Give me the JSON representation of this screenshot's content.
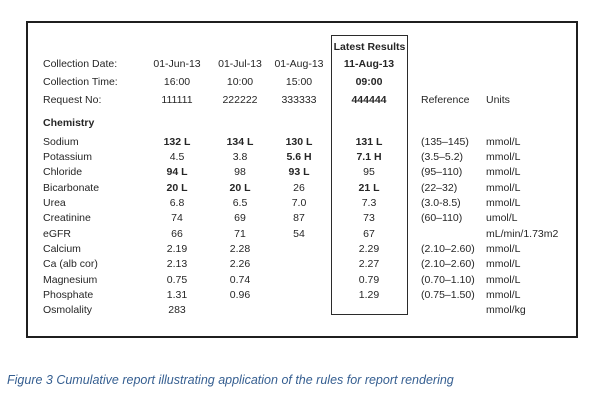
{
  "report": {
    "latest_box_title": "Latest Results",
    "header_rows": [
      {
        "label": "Collection Date:",
        "values": [
          "01-Jun-13",
          "01-Jul-13",
          "01-Aug-13",
          "11-Aug-13"
        ],
        "ref": "",
        "units": ""
      },
      {
        "label": "Collection Time:",
        "values": [
          "16:00",
          "10:00",
          "15:00",
          "09:00"
        ],
        "ref": "",
        "units": ""
      },
      {
        "label": "Request No:",
        "values": [
          "111111",
          "222222",
          "333333",
          "444444"
        ],
        "ref": "Reference",
        "units": "Units"
      }
    ],
    "section_title": "Chemistry",
    "rows": [
      {
        "label": "Sodium",
        "values": [
          "132 L",
          "134 L",
          "130 L",
          "131 L"
        ],
        "bold": [
          true,
          true,
          true,
          true
        ],
        "ref": "(135–145)",
        "units": "mmol/L"
      },
      {
        "label": "Potassium",
        "values": [
          "4.5",
          "3.8",
          "5.6 H",
          "7.1 H"
        ],
        "bold": [
          false,
          false,
          true,
          true
        ],
        "ref": "(3.5–5.2)",
        "units": "mmol/L"
      },
      {
        "label": "Chloride",
        "values": [
          "94 L",
          "98",
          "93 L",
          "95"
        ],
        "bold": [
          true,
          false,
          true,
          false
        ],
        "ref": "(95–110)",
        "units": "mmol/L"
      },
      {
        "label": "Bicarbonate",
        "values": [
          "20 L",
          "20 L",
          "26",
          "21 L"
        ],
        "bold": [
          true,
          true,
          false,
          true
        ],
        "ref": "(22–32)",
        "units": "mmol/L"
      },
      {
        "label": "Urea",
        "values": [
          "6.8",
          "6.5",
          "7.0",
          "7.3"
        ],
        "bold": [
          false,
          false,
          false,
          false
        ],
        "ref": "(3.0-8.5)",
        "units": "mmol/L"
      },
      {
        "label": "Creatinine",
        "values": [
          "74",
          "69",
          "87",
          "73"
        ],
        "bold": [
          false,
          false,
          false,
          false
        ],
        "ref": "(60–110)",
        "units": "umol/L"
      },
      {
        "label": "eGFR",
        "values": [
          "66",
          "71",
          "54",
          "67"
        ],
        "bold": [
          false,
          false,
          false,
          false
        ],
        "ref": "",
        "units": "mL/min/1.73m2"
      },
      {
        "label": "Calcium",
        "values": [
          "2.19",
          "2.28",
          "",
          "2.29"
        ],
        "bold": [
          false,
          false,
          false,
          false
        ],
        "ref": "(2.10–2.60)",
        "units": "mmol/L"
      },
      {
        "label": "Ca (alb cor)",
        "values": [
          "2.13",
          "2.26",
          "",
          "2.27"
        ],
        "bold": [
          false,
          false,
          false,
          false
        ],
        "ref": "(2.10–2.60)",
        "units": "mmol/L"
      },
      {
        "label": "Magnesium",
        "values": [
          "0.75",
          "0.74",
          "",
          "0.79"
        ],
        "bold": [
          false,
          false,
          false,
          false
        ],
        "ref": "(0.70–1.10)",
        "units": "mmol/L"
      },
      {
        "label": "Phosphate",
        "values": [
          "1.31",
          "0.96",
          "",
          "1.29"
        ],
        "bold": [
          false,
          false,
          false,
          false
        ],
        "ref": "(0.75–1.50)",
        "units": "mmol/L"
      },
      {
        "label": "Osmolality",
        "values": [
          "283",
          "",
          "",
          ""
        ],
        "bold": [
          false,
          false,
          false,
          false
        ],
        "ref": "",
        "units": "mmol/kg"
      }
    ]
  },
  "caption": "Figure 3 Cumulative report illustrating application of the rules for report rendering",
  "colors": {
    "caption_text": "#365f91",
    "outer_border": "#1f1f1f",
    "inner_border": "#2b2b2b",
    "body_text": "#262626"
  }
}
